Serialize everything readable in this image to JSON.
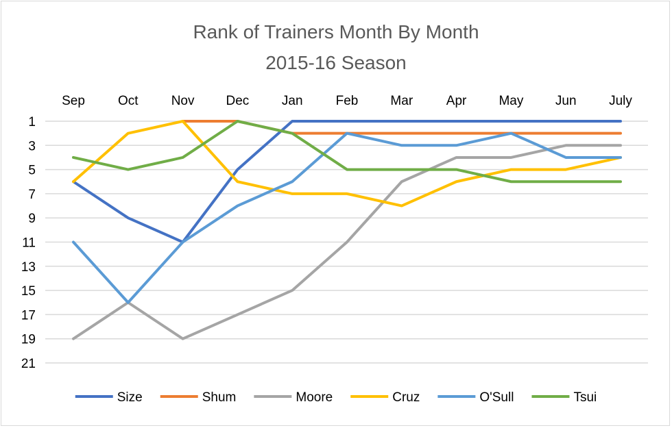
{
  "chart_data": {
    "type": "line",
    "title": "Rank of Trainers Month By Month",
    "subtitle": "2015-16 Season",
    "categories": [
      "Sep",
      "Oct",
      "Nov",
      "Dec",
      "Jan",
      "Feb",
      "Mar",
      "Apr",
      "May",
      "Jun",
      "July"
    ],
    "y_reversed": true,
    "ylim": [
      1,
      21
    ],
    "y_ticks": [
      1,
      3,
      5,
      7,
      9,
      11,
      13,
      15,
      17,
      19,
      21
    ],
    "x_axis_position": "top",
    "grid": true,
    "legend_position": "bottom",
    "series": [
      {
        "name": "Size",
        "color": "#4472C4",
        "values": [
          6,
          9,
          11,
          5,
          1,
          1,
          1,
          1,
          1,
          1,
          1
        ]
      },
      {
        "name": "Shum",
        "color": "#ED7D31",
        "values": [
          null,
          null,
          1,
          1,
          2,
          2,
          2,
          2,
          2,
          2,
          2
        ]
      },
      {
        "name": "Moore",
        "color": "#A5A5A5",
        "values": [
          19,
          16,
          19,
          17,
          15,
          11,
          6,
          4,
          4,
          3,
          3
        ]
      },
      {
        "name": "Cruz",
        "color": "#FFC000",
        "values": [
          6,
          2,
          1,
          6,
          7,
          7,
          8,
          6,
          5,
          5,
          4
        ]
      },
      {
        "name": "O'Sull",
        "color": "#5B9BD5",
        "values": [
          11,
          16,
          11,
          8,
          6,
          2,
          3,
          3,
          2,
          4,
          4
        ]
      },
      {
        "name": "Tsui",
        "color": "#70AD47",
        "values": [
          4,
          5,
          4,
          1,
          2,
          5,
          5,
          5,
          6,
          6,
          6
        ]
      }
    ]
  }
}
